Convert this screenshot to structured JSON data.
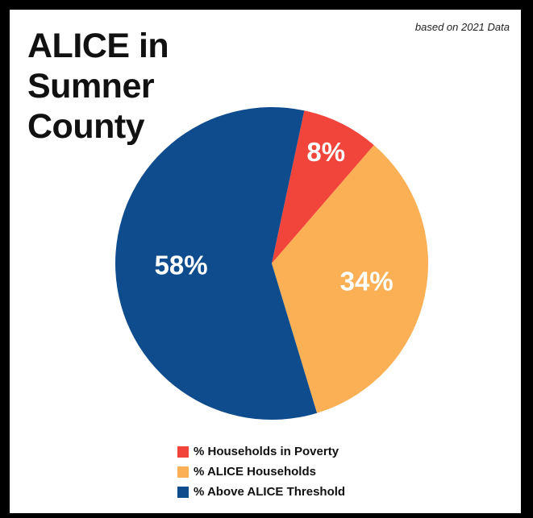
{
  "title_lines": [
    "ALICE in",
    "Sumner",
    "County"
  ],
  "subtitle": "based on 2021 Data",
  "chart_data": {
    "type": "pie",
    "title": "ALICE in Sumner County",
    "subtitle": "based on 2021 Data",
    "slices": [
      {
        "label": "% Households in Poverty",
        "value": 8,
        "display": "8%",
        "color": "#f1443a"
      },
      {
        "label": "% ALICE Households",
        "value": 34,
        "display": "34%",
        "color": "#fbb055"
      },
      {
        "label": "% Above ALICE Threshold",
        "value": 58,
        "display": "58%",
        "color": "#0f4c8d"
      }
    ],
    "legend_position": "bottom"
  }
}
